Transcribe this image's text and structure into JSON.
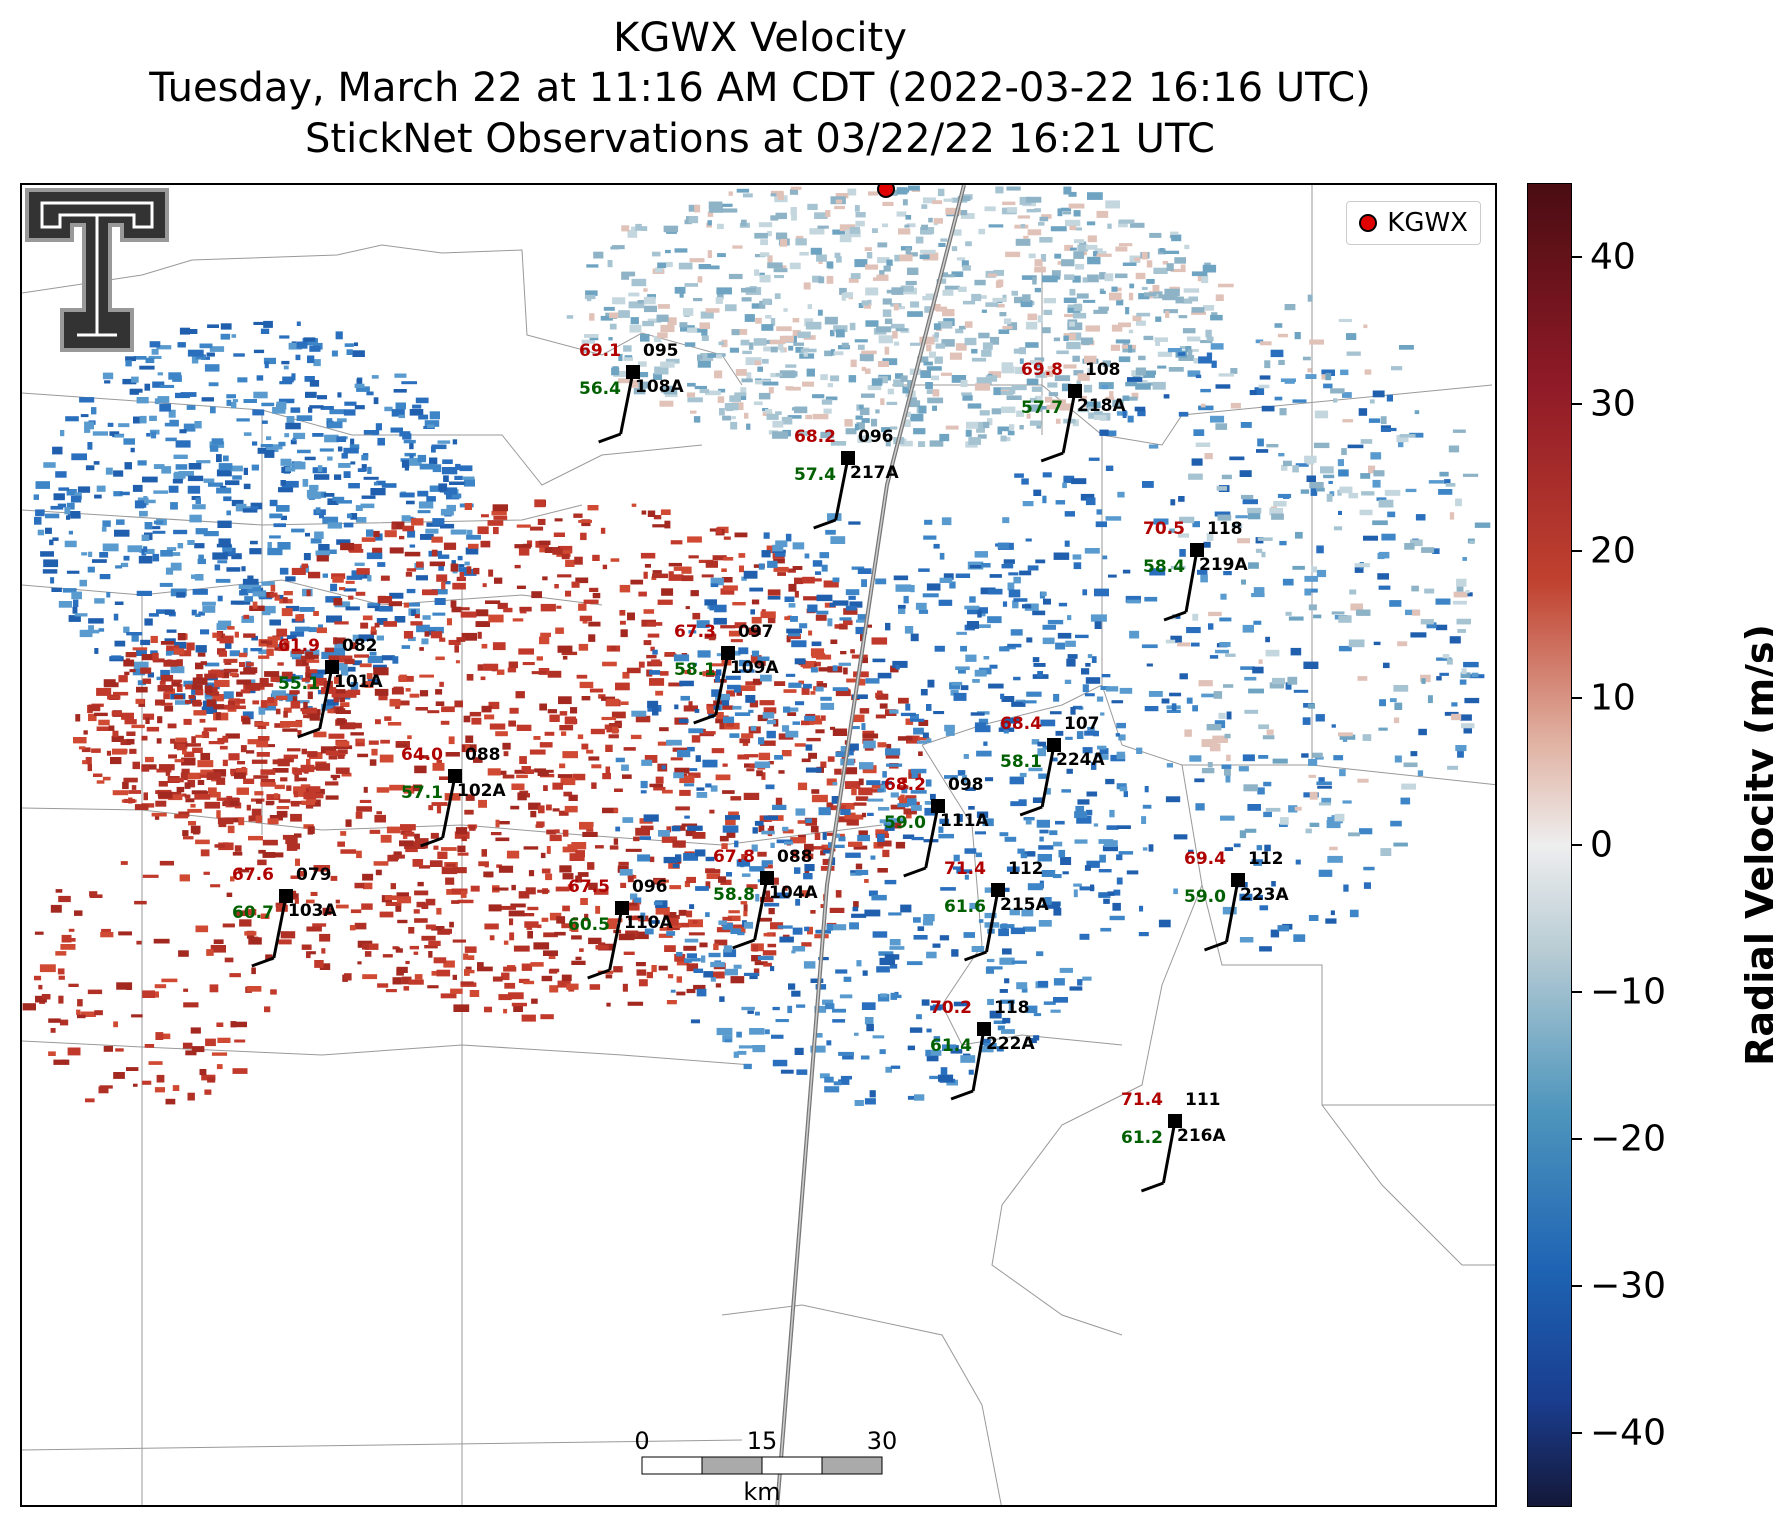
{
  "title": {
    "line1": "KGWX Velocity",
    "line2": "Tuesday, March 22 at 11:16 AM CDT (2022-03-22 16:16 UTC)",
    "line3": "StickNet Observations at 03/22/22 16:21 UTC"
  },
  "legend": {
    "radar_label": "KGWX"
  },
  "colorbar": {
    "label": "Radial Velocity (m/s)",
    "min": -45,
    "max": 45,
    "ticks": [
      "40",
      "30",
      "20",
      "10",
      "0",
      "−10",
      "−20",
      "−30",
      "−40"
    ],
    "tick_values": [
      40,
      30,
      20,
      10,
      0,
      -10,
      -20,
      -30,
      -40
    ],
    "colors": {
      "max": "#4a0d12",
      "high": "#8f1a27",
      "mid_high": "#c0412f",
      "low_pos": "#e0b0a0",
      "zero": "#eeeeee",
      "low_neg": "#b8ccd4",
      "mid_neg": "#4f96bd",
      "neg": "#1e64b4",
      "high_neg": "#1a3d8f",
      "min": "#141838"
    }
  },
  "scale_bar": {
    "ticks": [
      "0",
      "15",
      "30"
    ],
    "unit": "km"
  },
  "stations": [
    {
      "id": "108A",
      "temp": "69.1",
      "dew": "56.4",
      "dir": "095"
    },
    {
      "id": "218A",
      "temp": "69.8",
      "dew": "57.7",
      "dir": "108"
    },
    {
      "id": "217A",
      "temp": "68.2",
      "dew": "57.4",
      "dir": "096"
    },
    {
      "id": "219A",
      "temp": "70.5",
      "dew": "58.4",
      "dir": "118"
    },
    {
      "id": "101A",
      "temp": "61.9",
      "dew": "55.1",
      "dir": "082"
    },
    {
      "id": "109A",
      "temp": "67.3",
      "dew": "58.1",
      "dir": "097"
    },
    {
      "id": "224A",
      "temp": "68.4",
      "dew": "58.1",
      "dir": "107"
    },
    {
      "id": "102A",
      "temp": "64.0",
      "dew": "57.1",
      "dir": "088"
    },
    {
      "id": "111A",
      "temp": "68.2",
      "dew": "59.0",
      "dir": "098"
    },
    {
      "id": "104A",
      "temp": "67.8",
      "dew": "58.8",
      "dir": "088"
    },
    {
      "id": "215A",
      "temp": "71.4",
      "dew": "61.6",
      "dir": "112"
    },
    {
      "id": "223A",
      "temp": "69.4",
      "dew": "59.0",
      "dir": "112"
    },
    {
      "id": "103A",
      "temp": "67.6",
      "dew": "60.7",
      "dir": "079"
    },
    {
      "id": "110A",
      "temp": "67.5",
      "dew": "60.5",
      "dir": "096"
    },
    {
      "id": "222A",
      "temp": "70.2",
      "dew": "61.4",
      "dir": "118"
    },
    {
      "id": "216A",
      "temp": "71.4",
      "dew": "61.2",
      "dir": "111"
    }
  ]
}
